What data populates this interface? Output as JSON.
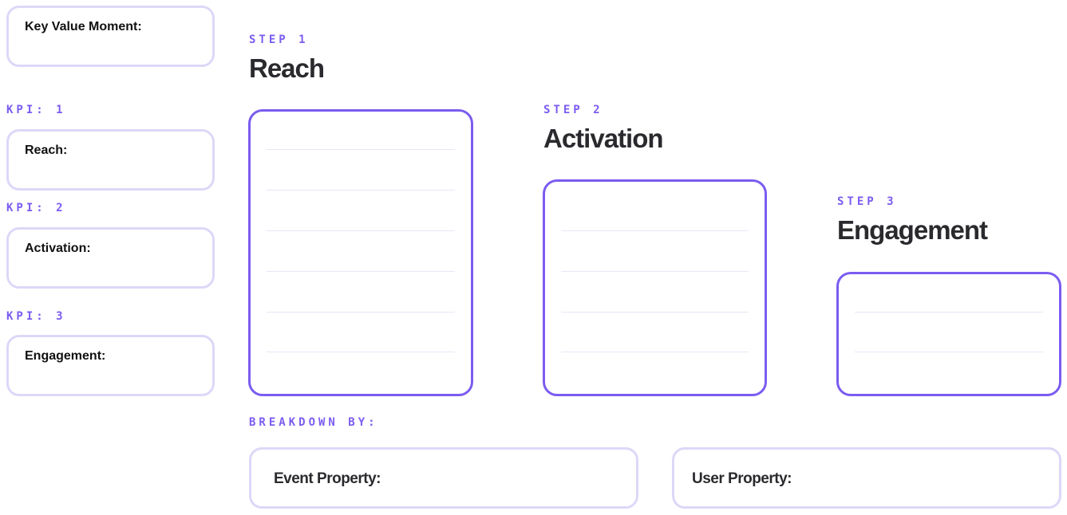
{
  "left": {
    "key_value_moment": "Key Value Moment:",
    "kpis": [
      {
        "label": "KPI: 1",
        "field": "Reach:"
      },
      {
        "label": "KPI: 2",
        "field": "Activation:"
      },
      {
        "label": "KPI: 3",
        "field": "Engagement:"
      }
    ]
  },
  "steps": [
    {
      "label": "STEP 1",
      "title": "Reach"
    },
    {
      "label": "STEP 2",
      "title": "Activation"
    },
    {
      "label": "STEP 3",
      "title": "Engagement"
    }
  ],
  "breakdown": {
    "label": "BREAKDOWN BY:",
    "event_property": "Event Property:",
    "user_property": "User Property:"
  },
  "colors": {
    "accent": "#7b5cf0",
    "soft_border": "#dcd8f8"
  }
}
